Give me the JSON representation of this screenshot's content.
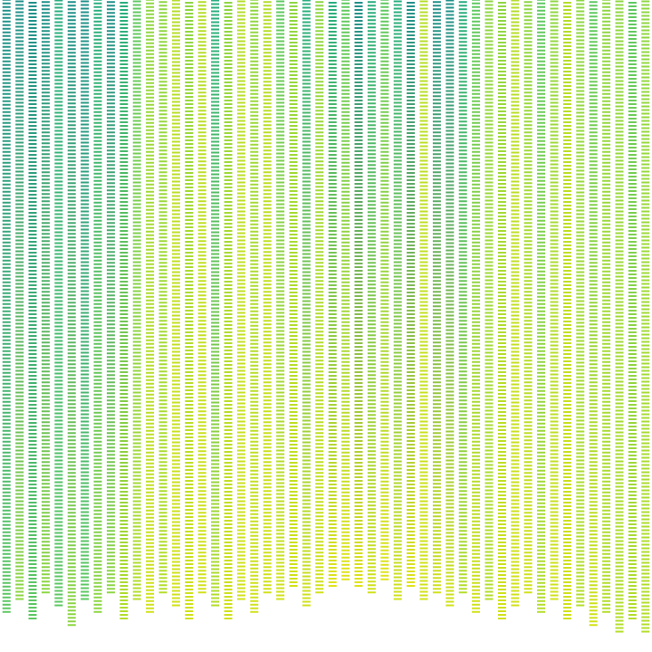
{
  "chart_data": {
    "type": "line",
    "line_style": "dotted",
    "grid": false,
    "tick_labels": false,
    "xlim": [
      0,
      100
    ],
    "ylim": [
      0,
      100
    ],
    "series": [
      {
        "x": [
          1,
          1
        ],
        "values": [
          6,
          100
        ],
        "colors": [
          "#5ec962",
          "#21918c"
        ]
      },
      {
        "x": [
          3,
          3
        ],
        "values": [
          8,
          100
        ],
        "colors": [
          "#8fd744",
          "#21918c"
        ]
      },
      {
        "x": [
          5,
          5
        ],
        "values": [
          5,
          100
        ],
        "colors": [
          "#5ec962",
          "#21918c"
        ]
      },
      {
        "x": [
          7,
          7
        ],
        "values": [
          9,
          100
        ],
        "colors": [
          "#8fd744",
          "#21918c"
        ]
      },
      {
        "x": [
          9,
          9
        ],
        "values": [
          7,
          100
        ],
        "colors": [
          "#5ec962",
          "#28ae80"
        ]
      },
      {
        "x": [
          11,
          11
        ],
        "values": [
          4,
          100
        ],
        "colors": [
          "#8fd744",
          "#21918c"
        ]
      },
      {
        "x": [
          13,
          13
        ],
        "values": [
          8,
          100
        ],
        "colors": [
          "#5ec962",
          "#21918c"
        ]
      },
      {
        "x": [
          15,
          15
        ],
        "values": [
          6,
          100
        ],
        "colors": [
          "#8fd744",
          "#28ae80"
        ]
      },
      {
        "x": [
          17,
          17
        ],
        "values": [
          9,
          100
        ],
        "colors": [
          "#8fd744",
          "#21918c"
        ]
      },
      {
        "x": [
          19,
          19
        ],
        "values": [
          5,
          100
        ],
        "colors": [
          "#b5de2b",
          "#28ae80"
        ]
      },
      {
        "x": [
          21,
          21
        ],
        "values": [
          8,
          100
        ],
        "colors": [
          "#b5de2b",
          "#5ec962"
        ]
      },
      {
        "x": [
          23,
          23
        ],
        "values": [
          6,
          100
        ],
        "colors": [
          "#d2e21b",
          "#8fd744"
        ]
      },
      {
        "x": [
          25,
          25
        ],
        "values": [
          9,
          100
        ],
        "colors": [
          "#b5de2b",
          "#8fd744"
        ]
      },
      {
        "x": [
          27,
          27
        ],
        "values": [
          7,
          100
        ],
        "colors": [
          "#d2e21b",
          "#b5de2b"
        ]
      },
      {
        "x": [
          29,
          29
        ],
        "values": [
          5,
          100
        ],
        "colors": [
          "#d2e21b",
          "#8fd744"
        ]
      },
      {
        "x": [
          31,
          31
        ],
        "values": [
          9,
          100
        ],
        "colors": [
          "#d2e21b",
          "#b5de2b"
        ]
      },
      {
        "x": [
          33,
          33
        ],
        "values": [
          7,
          100
        ],
        "colors": [
          "#b5de2b",
          "#28ae80"
        ]
      },
      {
        "x": [
          35,
          35
        ],
        "values": [
          5,
          100
        ],
        "colors": [
          "#d2e21b",
          "#8fd744"
        ]
      },
      {
        "x": [
          37,
          37
        ],
        "values": [
          8,
          100
        ],
        "colors": [
          "#d2e21b",
          "#b5de2b"
        ]
      },
      {
        "x": [
          39,
          39
        ],
        "values": [
          6,
          100
        ],
        "colors": [
          "#d2e21b",
          "#8fd744"
        ]
      },
      {
        "x": [
          41,
          41
        ],
        "values": [
          9,
          100
        ],
        "colors": [
          "#d2e21b",
          "#b5de2b"
        ]
      },
      {
        "x": [
          43,
          43
        ],
        "values": [
          8,
          100
        ],
        "colors": [
          "#d2e21b",
          "#5ec962"
        ]
      },
      {
        "x": [
          45,
          45
        ],
        "values": [
          10,
          100
        ],
        "colors": [
          "#d2e21b",
          "#8fd744"
        ]
      },
      {
        "x": [
          47,
          47
        ],
        "values": [
          7,
          100
        ],
        "colors": [
          "#d2e21b",
          "#28ae80"
        ]
      },
      {
        "x": [
          49,
          49
        ],
        "values": [
          9,
          100
        ],
        "colors": [
          "#d2e21b",
          "#8fd744"
        ]
      },
      {
        "x": [
          51,
          51
        ],
        "values": [
          10,
          100
        ],
        "colors": [
          "#e1e41a",
          "#28ae80"
        ]
      },
      {
        "x": [
          53,
          53
        ],
        "values": [
          11,
          100
        ],
        "colors": [
          "#e1e41a",
          "#5ec962"
        ]
      },
      {
        "x": [
          55,
          55
        ],
        "values": [
          10,
          100
        ],
        "colors": [
          "#e1e41a",
          "#21918c"
        ]
      },
      {
        "x": [
          57,
          57
        ],
        "values": [
          9,
          100
        ],
        "colors": [
          "#d2e21b",
          "#28ae80"
        ]
      },
      {
        "x": [
          59,
          59
        ],
        "values": [
          11,
          100
        ],
        "colors": [
          "#e1e41a",
          "#5ec962"
        ]
      },
      {
        "x": [
          61,
          61
        ],
        "values": [
          8,
          100
        ],
        "colors": [
          "#d2e21b",
          "#28ae80"
        ]
      },
      {
        "x": [
          63,
          63
        ],
        "values": [
          10,
          100
        ],
        "colors": [
          "#e1e41a",
          "#21918c"
        ]
      },
      {
        "x": [
          65,
          65
        ],
        "values": [
          8,
          100
        ],
        "colors": [
          "#d2e21b",
          "#b5de2b"
        ]
      },
      {
        "x": [
          67,
          67
        ],
        "values": [
          9,
          100
        ],
        "colors": [
          "#d2e21b",
          "#21918c"
        ]
      },
      {
        "x": [
          69,
          69
        ],
        "values": [
          7,
          100
        ],
        "colors": [
          "#d2e21b",
          "#21918c"
        ]
      },
      {
        "x": [
          71,
          71
        ],
        "values": [
          9,
          100
        ],
        "colors": [
          "#b5de2b",
          "#28ae80"
        ]
      },
      {
        "x": [
          73,
          73
        ],
        "values": [
          6,
          100
        ],
        "colors": [
          "#d2e21b",
          "#5ec962"
        ]
      },
      {
        "x": [
          75,
          75
        ],
        "values": [
          8,
          100
        ],
        "colors": [
          "#b5de2b",
          "#8fd744"
        ]
      },
      {
        "x": [
          77,
          77
        ],
        "values": [
          5,
          100
        ],
        "colors": [
          "#d2e21b",
          "#8fd744"
        ]
      },
      {
        "x": [
          79,
          79
        ],
        "values": [
          7,
          100
        ],
        "colors": [
          "#d2e21b",
          "#b5de2b"
        ]
      },
      {
        "x": [
          81,
          81
        ],
        "values": [
          9,
          100
        ],
        "colors": [
          "#d2e21b",
          "#8fd744"
        ]
      },
      {
        "x": [
          83,
          83
        ],
        "values": [
          6,
          100
        ],
        "colors": [
          "#b5de2b",
          "#5ec962"
        ]
      },
      {
        "x": [
          85,
          85
        ],
        "values": [
          8,
          100
        ],
        "colors": [
          "#d2e21b",
          "#8fd744"
        ]
      },
      {
        "x": [
          87,
          87
        ],
        "values": [
          5,
          100
        ],
        "colors": [
          "#d2e21b",
          "#b5de2b"
        ]
      },
      {
        "x": [
          89,
          89
        ],
        "values": [
          7,
          100
        ],
        "colors": [
          "#b5de2b",
          "#8fd744"
        ]
      },
      {
        "x": [
          91,
          91
        ],
        "values": [
          4,
          100
        ],
        "colors": [
          "#d2e21b",
          "#5ec962"
        ]
      },
      {
        "x": [
          93,
          93
        ],
        "values": [
          6,
          100
        ],
        "colors": [
          "#b5de2b",
          "#8fd744"
        ]
      },
      {
        "x": [
          95,
          95
        ],
        "values": [
          3,
          100
        ],
        "colors": [
          "#b5de2b",
          "#8fd744"
        ]
      },
      {
        "x": [
          97,
          97
        ],
        "values": [
          5,
          100
        ],
        "colors": [
          "#b5de2b",
          "#5ec962"
        ]
      },
      {
        "x": [
          99,
          99
        ],
        "values": [
          3,
          100
        ],
        "colors": [
          "#b5de2b",
          "#8fd744"
        ]
      }
    ]
  }
}
